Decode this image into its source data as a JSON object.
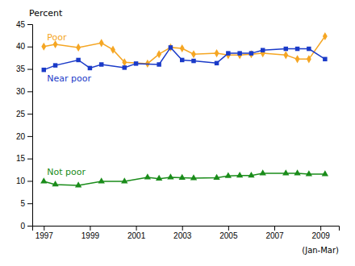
{
  "chart_data": {
    "type": "line",
    "ylabel": "Percent",
    "annotations": [
      "(Jan-Mar)"
    ],
    "xlim": [
      1996.5,
      2009.8
    ],
    "xticks": [
      1997,
      1999,
      2001,
      2003,
      2005,
      2007,
      2009
    ],
    "ylim": [
      0,
      45
    ],
    "yticks": [
      0,
      5,
      10,
      15,
      20,
      25,
      30,
      35,
      40,
      45
    ],
    "grid": false,
    "series": [
      {
        "name": "Poor",
        "color": "#f5a623",
        "marker": "diamond",
        "x": [
          1997,
          1997.5,
          1998.5,
          1999.5,
          2000,
          2000.5,
          2001.5,
          2002,
          2002.5,
          2003,
          2003.5,
          2004.5,
          2005,
          2005.5,
          2006,
          2006.5,
          2007.5,
          2008,
          2008.5,
          2009.2
        ],
        "values": [
          40.0,
          40.5,
          39.8,
          40.8,
          39.3,
          36.5,
          36.2,
          38.3,
          39.8,
          39.6,
          38.3,
          38.5,
          38.1,
          38.1,
          38.3,
          38.5,
          38.1,
          37.2,
          37.2,
          42.3
        ]
      },
      {
        "name": "Near poor",
        "color": "#1a3ac8",
        "marker": "square",
        "x": [
          1997,
          1997.5,
          1998.5,
          1999,
          1999.5,
          2000.5,
          2001,
          2002,
          2002.5,
          2003,
          2003.5,
          2004.5,
          2005,
          2005.5,
          2006,
          2006.5,
          2007.5,
          2008,
          2008.5,
          2009.2
        ],
        "values": [
          34.8,
          35.8,
          37.0,
          35.2,
          36.0,
          35.3,
          36.2,
          36.0,
          39.8,
          37.0,
          36.8,
          36.3,
          38.5,
          38.5,
          38.5,
          39.2,
          39.5,
          39.5,
          39.5,
          37.2
        ]
      },
      {
        "name": "Not poor",
        "color": "#1a8c1a",
        "marker": "triangle",
        "x": [
          1997,
          1997.5,
          1998.5,
          1999.5,
          2000.5,
          2001.5,
          2002,
          2002.5,
          2003,
          2003.5,
          2004.5,
          2005,
          2005.5,
          2006,
          2006.5,
          2007.5,
          2008,
          2008.5,
          2009.2
        ],
        "values": [
          9.9,
          9.2,
          9.0,
          9.9,
          9.9,
          10.8,
          10.5,
          10.8,
          10.7,
          10.6,
          10.7,
          11.1,
          11.2,
          11.2,
          11.7,
          11.7,
          11.7,
          11.5,
          11.5
        ]
      }
    ]
  }
}
